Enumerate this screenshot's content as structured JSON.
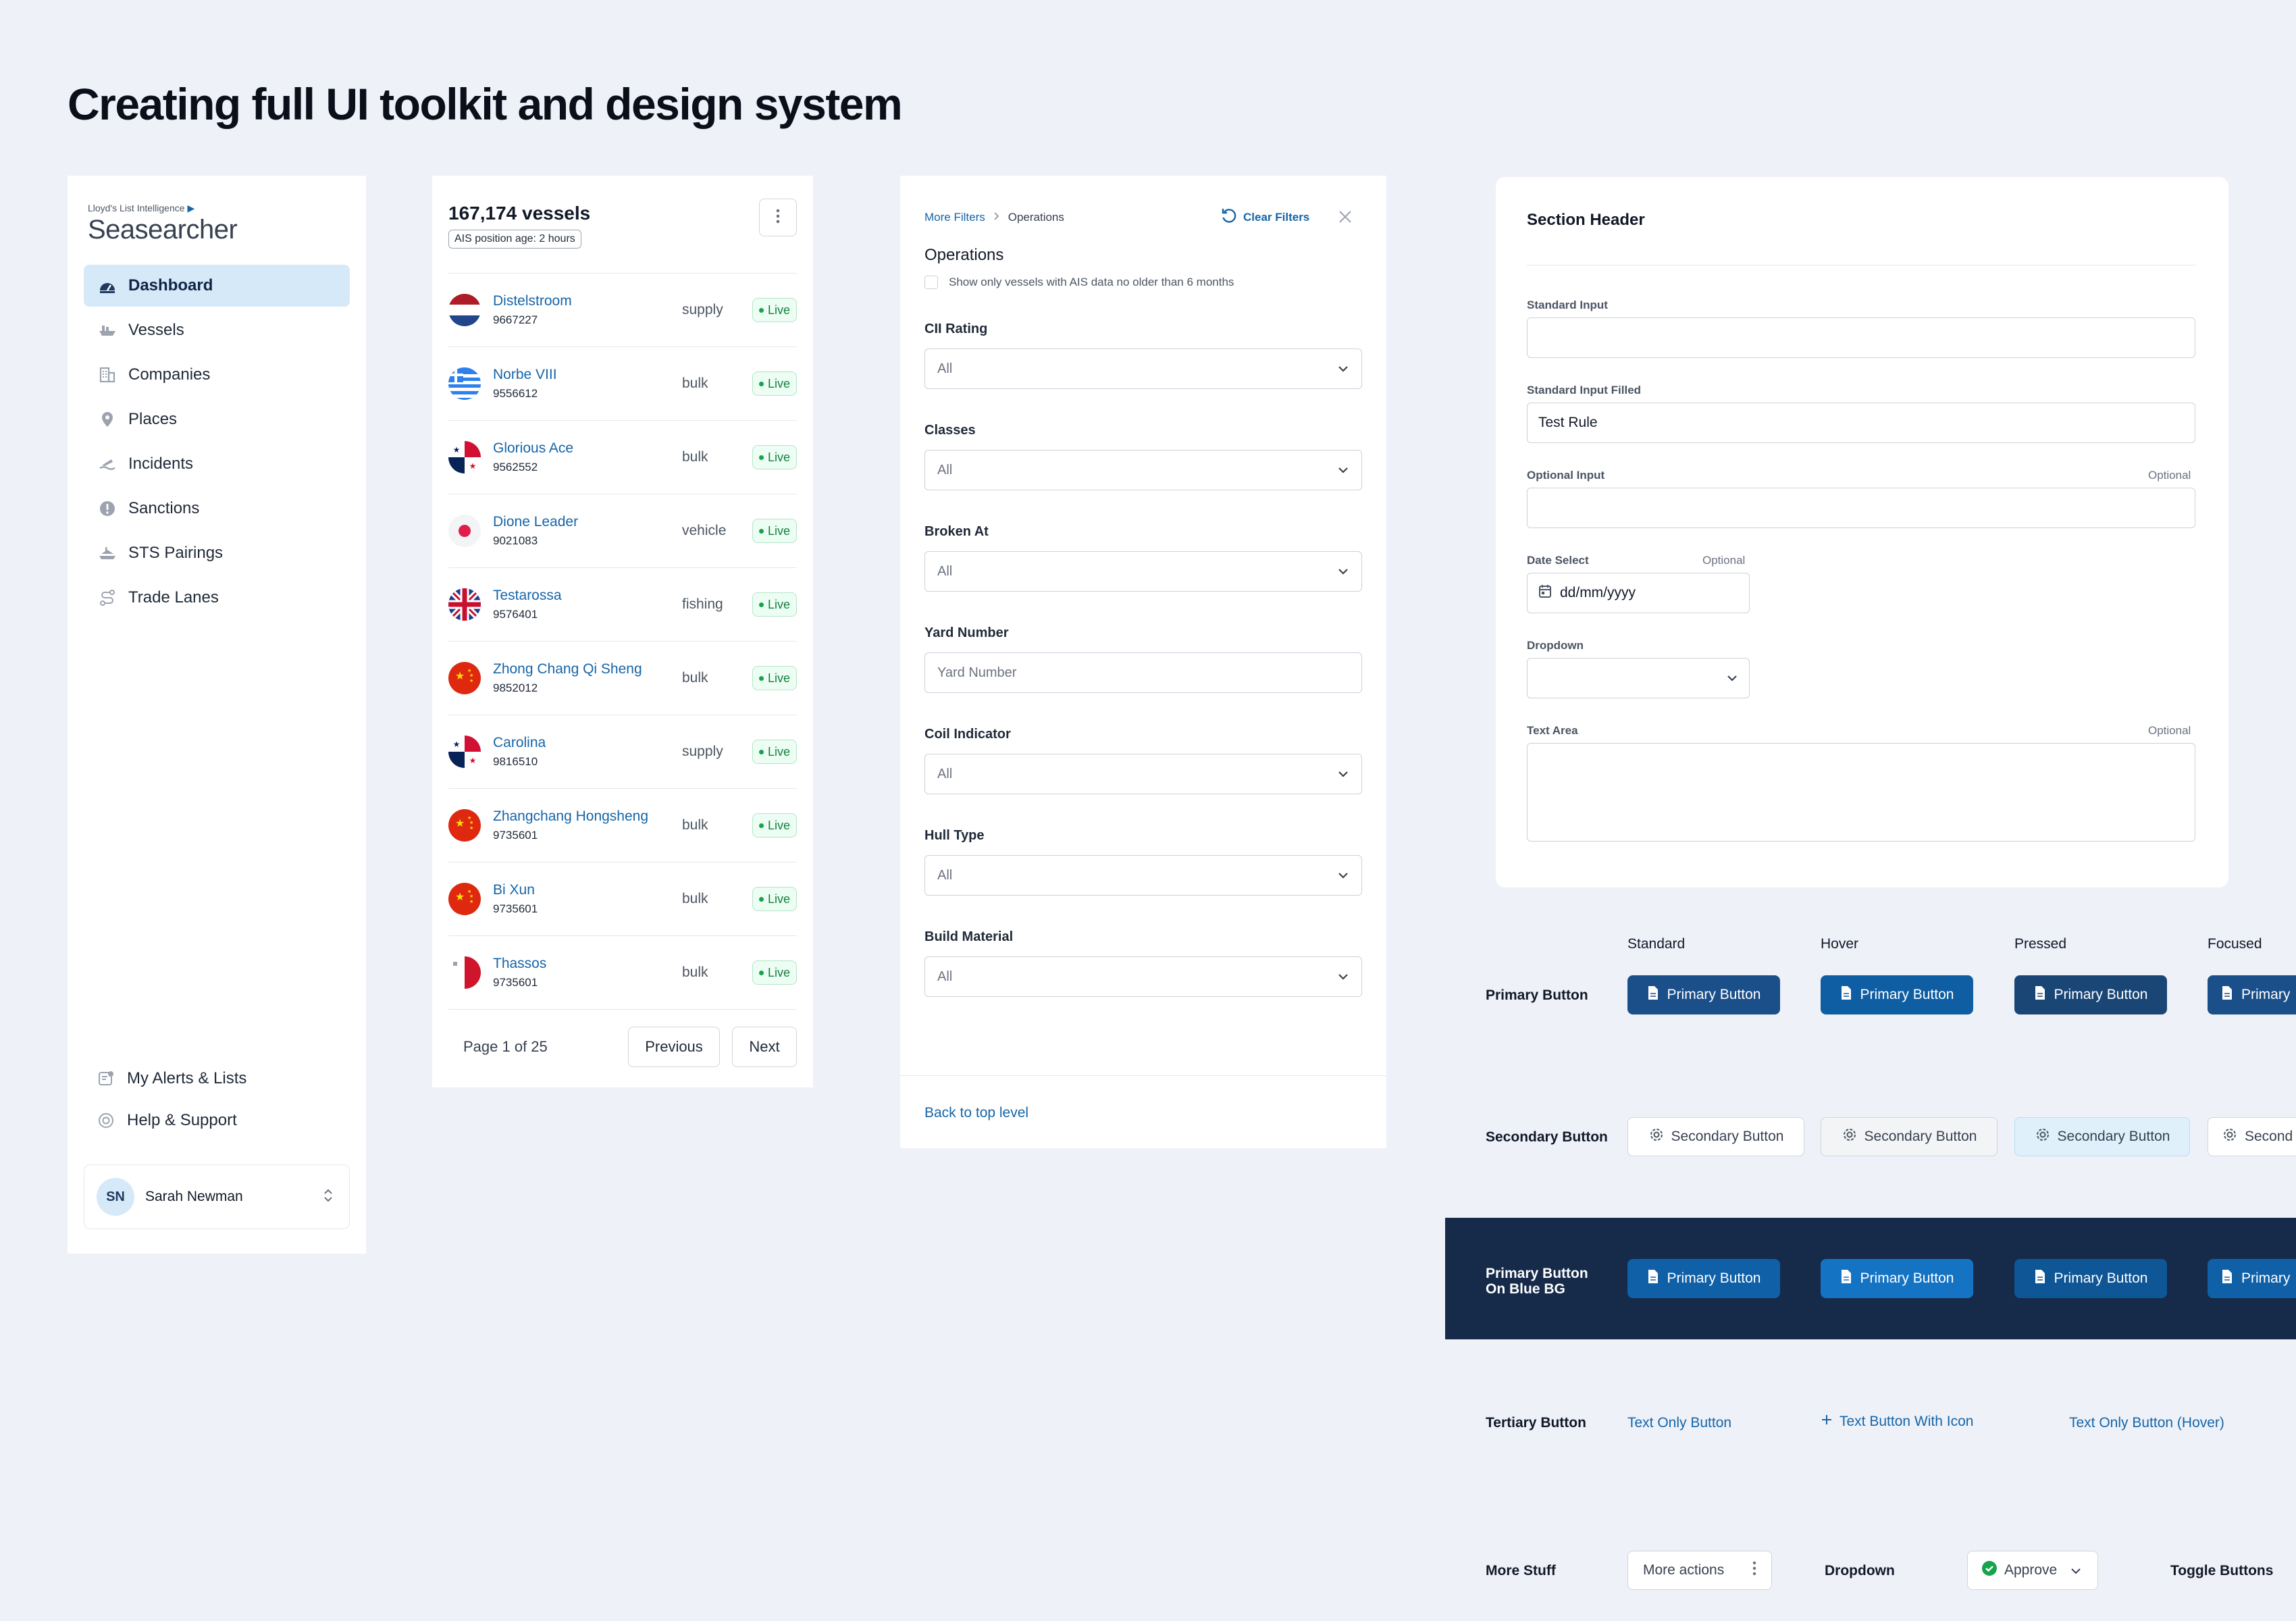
{
  "page_title": "Creating full UI toolkit and design system",
  "colors": {
    "brand": "#1565a8",
    "primary_button": "#1b4f8a",
    "primary_hover": "#0f5ea3",
    "primary_pressed": "#1a4676",
    "navy_bg": "#162a4a",
    "live_green": "#16a34a"
  },
  "sidebar": {
    "logo_small": "Lloyd's List Intelligence",
    "logo": "Seasearcher",
    "items": [
      {
        "label": "Dashboard",
        "icon": "dashboard-icon"
      },
      {
        "label": "Vessels",
        "icon": "ship-icon"
      },
      {
        "label": "Companies",
        "icon": "building-icon"
      },
      {
        "label": "Places",
        "icon": "pin-icon"
      },
      {
        "label": "Incidents",
        "icon": "incident-icon"
      },
      {
        "label": "Sanctions",
        "icon": "alert-icon"
      },
      {
        "label": "STS Pairings",
        "icon": "sts-icon"
      },
      {
        "label": "Trade Lanes",
        "icon": "route-icon"
      }
    ],
    "footer": [
      {
        "label": "My Alerts & Lists",
        "icon": "alerts-icon"
      },
      {
        "label": "Help & Support",
        "icon": "lifebuoy-icon"
      }
    ],
    "user": {
      "initials": "SN",
      "name": "Sarah Newman"
    }
  },
  "vessels": {
    "count": "167,174 vessels",
    "ais_age": "AIS position age: 2 hours",
    "live_label": "Live",
    "rows": [
      {
        "name": "Distelstroom",
        "imo": "9667227",
        "type": "supply",
        "flag": "nl"
      },
      {
        "name": "Norbe VIII",
        "imo": "9556612",
        "type": "bulk",
        "flag": "gr"
      },
      {
        "name": "Glorious Ace",
        "imo": "9562552",
        "type": "bulk",
        "flag": "pa"
      },
      {
        "name": "Dione Leader",
        "imo": "9021083",
        "type": "vehicle",
        "flag": "jp"
      },
      {
        "name": "Testarossa",
        "imo": "9576401",
        "type": "fishing",
        "flag": "uk"
      },
      {
        "name": "Zhong Chang Qi Sheng",
        "imo": "9852012",
        "type": "bulk",
        "flag": "cn"
      },
      {
        "name": "Carolina",
        "imo": "9816510",
        "type": "supply",
        "flag": "pa"
      },
      {
        "name": "Zhangchang Hongsheng",
        "imo": "9735601",
        "type": "bulk",
        "flag": "cn"
      },
      {
        "name": "Bi Xun",
        "imo": "9735601",
        "type": "bulk",
        "flag": "cn"
      },
      {
        "name": "Thassos",
        "imo": "9735601",
        "type": "bulk",
        "flag": "mt"
      }
    ],
    "page": "Page 1 of 25",
    "prev": "Previous",
    "next": "Next"
  },
  "filters": {
    "crumb_parent": "More Filters",
    "crumb_current": "Operations",
    "clear": "Clear Filters",
    "heading": "Operations",
    "checkbox_label": "Show only vessels with AIS data no older than 6 months",
    "fields": [
      {
        "label": "CII Rating",
        "value": "All",
        "kind": "select"
      },
      {
        "label": "Classes",
        "value": "All",
        "kind": "select"
      },
      {
        "label": "Broken At",
        "value": "All",
        "kind": "select"
      },
      {
        "label": "Yard Number",
        "value": "Yard Number",
        "kind": "input"
      },
      {
        "label": "Coil Indicator",
        "value": "All",
        "kind": "select"
      },
      {
        "label": "Hull Type",
        "value": "All",
        "kind": "select"
      },
      {
        "label": "Build Material",
        "value": "All",
        "kind": "select"
      }
    ],
    "back": "Back to top level"
  },
  "form": {
    "section_header": "Section Header",
    "standard_label": "Standard Input",
    "filled_label": "Standard Input Filled",
    "filled_value": "Test Rule",
    "optional_label": "Optional Input",
    "optional_tag": "Optional",
    "date_label": "Date Select",
    "date_placeholder": "dd/mm/yyyy",
    "dropdown_label": "Dropdown",
    "textarea_label": "Text Area"
  },
  "buttons": {
    "states": [
      "Standard",
      "Hover",
      "Pressed",
      "Focused"
    ],
    "primary_row": "Primary Button",
    "primary_label": "Primary Button",
    "primary_short": "Primary",
    "secondary_row": "Secondary Button",
    "secondary_label": "Secondary Button",
    "secondary_short": "Second",
    "blue_row_line1": "Primary Button",
    "blue_row_line2": "On Blue BG",
    "tertiary_row": "Tertiary Button",
    "tertiary_1": "Text Only Button",
    "tertiary_2": "Text Button With Icon",
    "tertiary_3": "Text Only Button (Hover)",
    "more_row": "More Stuff",
    "more_actions": "More actions",
    "dropdown_row": "Dropdown",
    "approve": "Approve",
    "toggle_row": "Toggle Buttons"
  }
}
